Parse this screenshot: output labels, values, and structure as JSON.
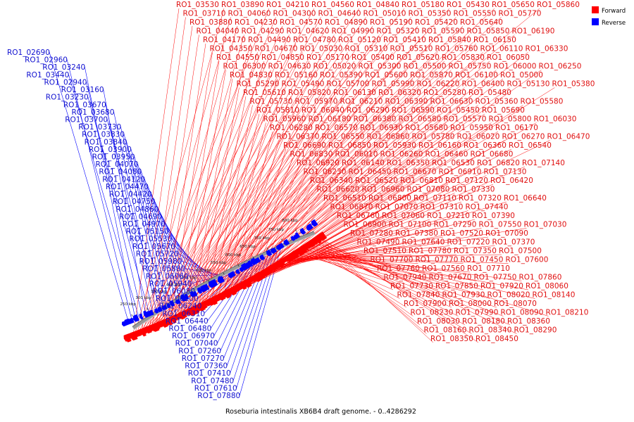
{
  "title": "Roseburia intestinalis XB6B4 draft genome. - 0..4286292",
  "legend": [
    {
      "label": "Forward",
      "color": "#ff0000"
    },
    {
      "label": "Reverse",
      "color": "#0000ff"
    }
  ],
  "colors": {
    "forward": "#ff0000",
    "reverse": "#0000ff",
    "backbone": "#9a9a9a",
    "label_forward": "#e01010",
    "label_reverse": "#1010d0"
  },
  "ticks": [
    "250 kbp",
    "300 kbp",
    "350 kbp",
    "400 kbp",
    "450 kbp",
    "500 kbp",
    "550 kbp",
    "600 kbp",
    "650 kbp",
    "700 kbp",
    "750 kbp",
    "800 kbp"
  ],
  "reverse_labels": [
    "RO1_02690",
    "RO1_02960",
    "RO1_03240",
    "RO1_03440",
    "RO1_02940",
    "RO1_03160",
    "RO1_03230",
    "RO1_03670",
    "RO1_03680",
    "RO1_03700",
    "RO1_03730",
    "RO1_03830",
    "RO1_03840",
    "RO1_03900",
    "RO1_03950",
    "RO1_04070",
    "RO1_04080",
    "RO1_04120",
    "RO1_04470",
    "RO1_04420",
    "RO1_04750",
    "RO1_04860",
    "RO1_04690",
    "RO1_04970",
    "RO1_05150",
    "RO1_05530",
    "RO1_05670",
    "RO1_05720",
    "RO1_05980",
    "RO1_05880",
    "RO1_06060",
    "RO1_05940",
    "RO1_06080",
    "RO1_06200",
    "RO1_06240",
    "RO1_06310",
    "RO1_06440",
    "RO1_06480",
    "RO1_06970",
    "RO1_07040",
    "RO1_07260",
    "RO1_07270",
    "RO1_07360",
    "RO1_07410",
    "RO1_07480",
    "RO1_07610",
    "RO1_07880"
  ],
  "forward_labels": [
    "RO1_03530",
    "RO1_03890",
    "RO1_04210",
    "RO1_04560",
    "RO1_04840",
    "RO1_05180",
    "RO1_05430",
    "RO1_05650",
    "RO1_05860",
    "RO1_03710",
    "RO1_04060",
    "RO1_04300",
    "RO1_04640",
    "RO1_05010",
    "RO1_05350",
    "RO1_05550",
    "RO1_05770",
    "RO1_03880",
    "RO1_04230",
    "RO1_04570",
    "RO1_04890",
    "RO1_05190",
    "RO1_05420",
    "RO1_05640",
    "RO1_04040",
    "RO1_04290",
    "RO1_04620",
    "RO1_04990",
    "RO1_05320",
    "RO1_05590",
    "RO1_05850",
    "RO1_06190",
    "RO1_04170",
    "RO1_04490",
    "RO1_04780",
    "RO1_05120",
    "RO1_05410",
    "RO1_05840",
    "RO1_06150",
    "RO1_04350",
    "RO1_04670",
    "RO1_05030",
    "RO1_05310",
    "RO1_05510",
    "RO1_05760",
    "RO1_06110",
    "RO1_06330",
    "RO1_04550",
    "RO1_04850",
    "RO1_05170",
    "RO1_05400",
    "RO1_05620",
    "RO1_05830",
    "RO1_06050",
    "RO1_06300",
    "RO1_04630",
    "RO1_05020",
    "RO1_05300",
    "RO1_05500",
    "RO1_05750",
    "RO1_06000",
    "RO1_06250",
    "RO1_04830",
    "RO1_05160",
    "RO1_05390",
    "RO1_05600",
    "RO1_05870",
    "RO1_06100",
    "RO1_05000",
    "RO1_05290",
    "RO1_05490",
    "RO1_05700",
    "RO1_05990",
    "RO1_06220",
    "RO1_06400",
    "RO1_05130",
    "RO1_05380",
    "RO1_05610",
    "RO1_05820",
    "RO1_06130",
    "RO1_06320",
    "RO1_05280",
    "RO1_05480",
    "RO1_05730",
    "RO1_05970",
    "RO1_06210",
    "RO1_06390",
    "RO1_06630",
    "RO1_05360",
    "RO1_05580",
    "RO1_05810",
    "RO1_06040",
    "RO1_06290",
    "RO1_06590",
    "RO1_05450",
    "RO1_05690",
    "RO1_05960",
    "RO1_06180",
    "RO1_06380",
    "RO1_06580",
    "RO1_05570",
    "RO1_05800",
    "RO1_06030",
    "RO1_06280",
    "RO1_06570",
    "RO1_06930",
    "RO1_05680",
    "RO1_05950",
    "RO1_06170",
    "RO1_06370",
    "RO1_06550",
    "RO1_06860",
    "RO1_05780",
    "RO1_06020",
    "RO1_06270",
    "RO1_06470",
    "RO1_06690",
    "RO1_06850",
    "RO1_05930",
    "RO1_06160",
    "RO1_06360",
    "RO1_06540",
    "RO1_06830",
    "RO1_06010",
    "RO1_06260",
    "RO1_06460",
    "RO1_06680",
    "RO1_06920",
    "RO1_06140",
    "RO1_06350",
    "RO1_06530",
    "RO1_06820",
    "RO1_07140",
    "RO1_06230",
    "RO1_06450",
    "RO1_06670",
    "RO1_06910",
    "RO1_07130",
    "RO1_06340",
    "RO1_06520",
    "RO1_06810",
    "RO1_07120",
    "RO1_06420",
    "RO1_06620",
    "RO1_06960",
    "RO1_07080",
    "RO1_07330",
    "RO1_06510",
    "RO1_06800",
    "RO1_07110",
    "RO1_07320",
    "RO1_06640",
    "RO1_06870",
    "RO1_07070",
    "RO1_07310",
    "RO1_07440",
    "RO1_06760",
    "RO1_07060",
    "RO1_07210",
    "RO1_07390",
    "RO1_06900",
    "RO1_07100",
    "RO1_07290",
    "RO1_07550",
    "RO1_07030",
    "RO1_07280",
    "RO1_07380",
    "RO1_07520",
    "RO1_07090",
    "RO1_07490",
    "RO1_07640",
    "RO1_07220",
    "RO1_07370",
    "RO1_07510",
    "RO1_07780",
    "RO1_07350",
    "RO1_07500",
    "RO1_07700",
    "RO1_07770",
    "RO1_07450",
    "RO1_07600",
    "RO1_07760",
    "RO1_07560",
    "RO1_07710",
    "RO1_07940",
    "RO1_07670",
    "RO1_07750",
    "RO1_07860",
    "RO1_07730",
    "RO1_07850",
    "RO1_07920",
    "RO1_08060",
    "RO1_07840",
    "RO1_07930",
    "RO1_08020",
    "RO1_08140",
    "RO1_07900",
    "RO1_08000",
    "RO1_08070",
    "RO1_08230",
    "RO1_07990",
    "RO1_08090",
    "RO1_08210",
    "RO1_08030",
    "RO1_08180",
    "RO1_08360",
    "RO1_08160",
    "RO1_08340",
    "RO1_08290",
    "RO1_08350",
    "RO1_08450"
  ]
}
